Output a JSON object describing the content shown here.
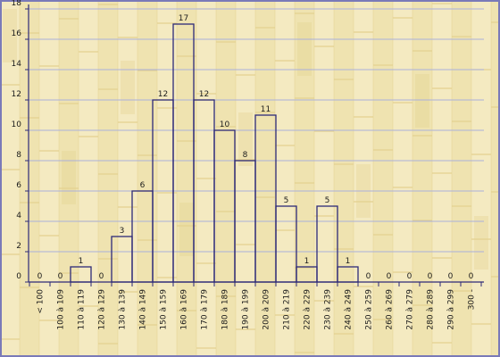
{
  "chart_data": {
    "type": "bar",
    "categories": [
      "< 100",
      "100 à 109",
      "110 à 119",
      "120 à 129",
      "130 à 139",
      "140 à 149",
      "150 à 159",
      "160 à 169",
      "170 à 179",
      "180 à 189",
      "190 à 199",
      "200 à 209",
      "210 à 219",
      "220 à 229",
      "230 à 239",
      "240 à 249",
      "250 à 259",
      "260 à 269",
      "270 à 279",
      "280 à 289",
      "290 à 299",
      "300 -"
    ],
    "values": [
      0,
      0,
      1,
      0,
      3,
      6,
      12,
      17,
      12,
      10,
      8,
      11,
      5,
      1,
      5,
      1,
      0,
      0,
      0,
      0,
      0,
      0
    ],
    "yticks": [
      0,
      2,
      4,
      6,
      8,
      10,
      12,
      14,
      16,
      18
    ],
    "ylim": [
      0,
      18
    ],
    "grid": true,
    "colors": {
      "background": "#efe3b0",
      "plank_dark": "#e3d190",
      "plank_light": "#f4ebc4",
      "axis": "#2d2a78",
      "grid": "#aab0dc",
      "bar_outline": "#2d2a78",
      "text": "#1b1b1b",
      "frame": "#7a7ab8"
    }
  }
}
